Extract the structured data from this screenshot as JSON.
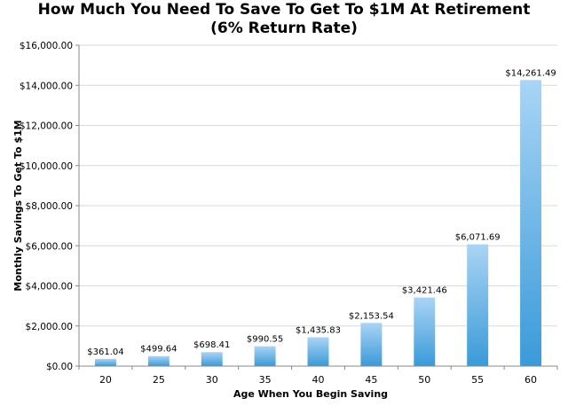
{
  "chart_data": {
    "type": "bar",
    "title_line1": "How Much You Need To Save To Get To $1M At Retirement",
    "title_line2": "(6% Return Rate)",
    "xlabel": "Age When You Begin Saving",
    "ylabel": "Monthly Savings To Get To $1M",
    "categories": [
      "20",
      "25",
      "30",
      "35",
      "40",
      "45",
      "50",
      "55",
      "60"
    ],
    "values": [
      361.04,
      499.64,
      698.41,
      990.55,
      1435.83,
      2153.54,
      3421.46,
      6071.69,
      14261.49
    ],
    "data_labels": [
      "$361.04",
      "$499.64",
      "$698.41",
      "$990.55",
      "$1,435.83",
      "$2,153.54",
      "$3,421.46",
      "$6,071.69",
      "$14,261.49"
    ],
    "ylim": [
      0,
      16000
    ],
    "yticks": [
      0,
      2000,
      4000,
      6000,
      8000,
      10000,
      12000,
      14000,
      16000
    ],
    "ytick_labels": [
      "$0.00",
      "$2,000.00",
      "$4,000.00",
      "$6,000.00",
      "$8,000.00",
      "$10,000.00",
      "$12,000.00",
      "$14,000.00",
      "$16,000.00"
    ],
    "grid": true,
    "legend": "none",
    "colors": {
      "bar_top": "#a9d4f5",
      "bar_bottom": "#3a9ad9",
      "grid": "#d9d9d9",
      "axis": "#888888"
    }
  }
}
